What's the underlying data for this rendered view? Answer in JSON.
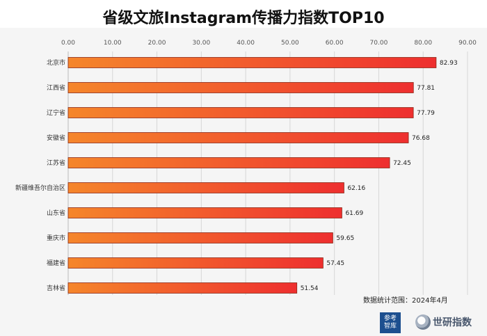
{
  "title": "省级文旅Instagram传播力指数TOP10",
  "source_note": "数据统计范围：2024年4月",
  "logo_text": "参考\n智库",
  "watermark_text": "世研指数",
  "colors": {
    "bar_start": "#f5862b",
    "bar_end": "#ee2f2f",
    "bar_stroke": "#8a2a1a",
    "plot_bg": "#f5f5f5"
  },
  "chart_data": {
    "type": "bar",
    "orientation": "horizontal",
    "title": "省级文旅Instagram传播力指数TOP10",
    "categories": [
      "北京市",
      "江西省",
      "辽宁省",
      "安徽省",
      "江苏省",
      "新疆维吾尔自治区",
      "山东省",
      "重庆市",
      "福建省",
      "吉林省"
    ],
    "values": [
      82.93,
      77.81,
      77.79,
      76.68,
      72.45,
      62.16,
      61.69,
      59.65,
      57.45,
      51.54
    ],
    "value_labels": [
      "82.93",
      "77.81",
      "77.79",
      "76.68",
      "72.45",
      "62.16",
      "61.69",
      "59.65",
      "57.45",
      "51.54"
    ],
    "x_ticks": [
      "0.00",
      "10.00",
      "20.00",
      "30.00",
      "40.00",
      "50.00",
      "60.00",
      "70.00",
      "80.00",
      "90.00"
    ],
    "xlim": [
      0,
      90
    ],
    "axis_position": "top",
    "grid": true,
    "legend": "none"
  }
}
